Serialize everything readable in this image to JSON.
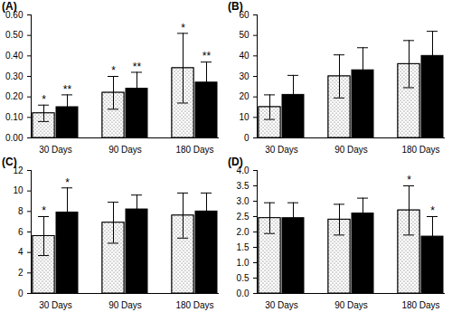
{
  "chart_data": [
    {
      "type": "bar",
      "title": "(A)",
      "categories": [
        "30 Days",
        "90 Days",
        "180 Days"
      ],
      "ylim": [
        0,
        0.6
      ],
      "yticks": [
        0,
        0.1,
        0.2,
        0.3,
        0.4,
        0.5,
        0.6
      ],
      "series": [
        {
          "color": "#ffffff",
          "values": [
            0.12,
            0.22,
            0.34
          ],
          "errors": [
            0.04,
            0.08,
            0.17
          ],
          "annotations": [
            "*",
            "*",
            "*"
          ]
        },
        {
          "color": "#000000",
          "values": [
            0.15,
            0.24,
            0.27
          ],
          "errors": [
            0.06,
            0.08,
            0.1
          ],
          "annotations": [
            "**",
            "**",
            "**"
          ]
        }
      ]
    },
    {
      "type": "bar",
      "title": "(B)",
      "categories": [
        "30 Days",
        "90 Days",
        "180 Days"
      ],
      "ylim": [
        0,
        60
      ],
      "yticks": [
        0,
        10,
        20,
        30,
        40,
        50,
        60
      ],
      "series": [
        {
          "color": "#ffffff",
          "values": [
            15,
            30,
            36
          ],
          "errors": [
            6,
            10.5,
            11.5
          ],
          "annotations": [
            null,
            null,
            null
          ]
        },
        {
          "color": "#000000",
          "values": [
            21,
            33,
            40
          ],
          "errors": [
            9.5,
            11,
            12
          ],
          "annotations": [
            null,
            null,
            null
          ]
        }
      ]
    },
    {
      "type": "bar",
      "title": "(C)",
      "categories": [
        "30 Days",
        "90 Days",
        "180 Days"
      ],
      "ylim": [
        0,
        12
      ],
      "yticks": [
        0,
        2,
        4,
        6,
        8,
        10,
        12
      ],
      "series": [
        {
          "color": "#ffffff",
          "values": [
            5.6,
            6.9,
            7.6
          ],
          "errors": [
            1.9,
            2,
            2.2
          ],
          "annotations": [
            "*",
            null,
            null
          ]
        },
        {
          "color": "#000000",
          "values": [
            7.9,
            8.2,
            8.0
          ],
          "errors": [
            2.4,
            1.4,
            1.8
          ],
          "annotations": [
            "*",
            null,
            null
          ]
        }
      ]
    },
    {
      "type": "bar",
      "title": "(D)",
      "categories": [
        "30 Days",
        "90 Days",
        "180 Days"
      ],
      "ylim": [
        0,
        4
      ],
      "yticks": [
        0,
        0.5,
        1,
        1.5,
        2,
        2.5,
        3,
        3.5,
        4
      ],
      "series": [
        {
          "color": "#ffffff",
          "values": [
            2.45,
            2.4,
            2.7
          ],
          "errors": [
            0.5,
            0.5,
            0.8
          ],
          "annotations": [
            null,
            null,
            "*"
          ]
        },
        {
          "color": "#000000",
          "values": [
            2.45,
            2.6,
            1.85
          ],
          "errors": [
            0.5,
            0.5,
            0.65
          ],
          "annotations": [
            null,
            null,
            "*"
          ]
        }
      ]
    }
  ]
}
